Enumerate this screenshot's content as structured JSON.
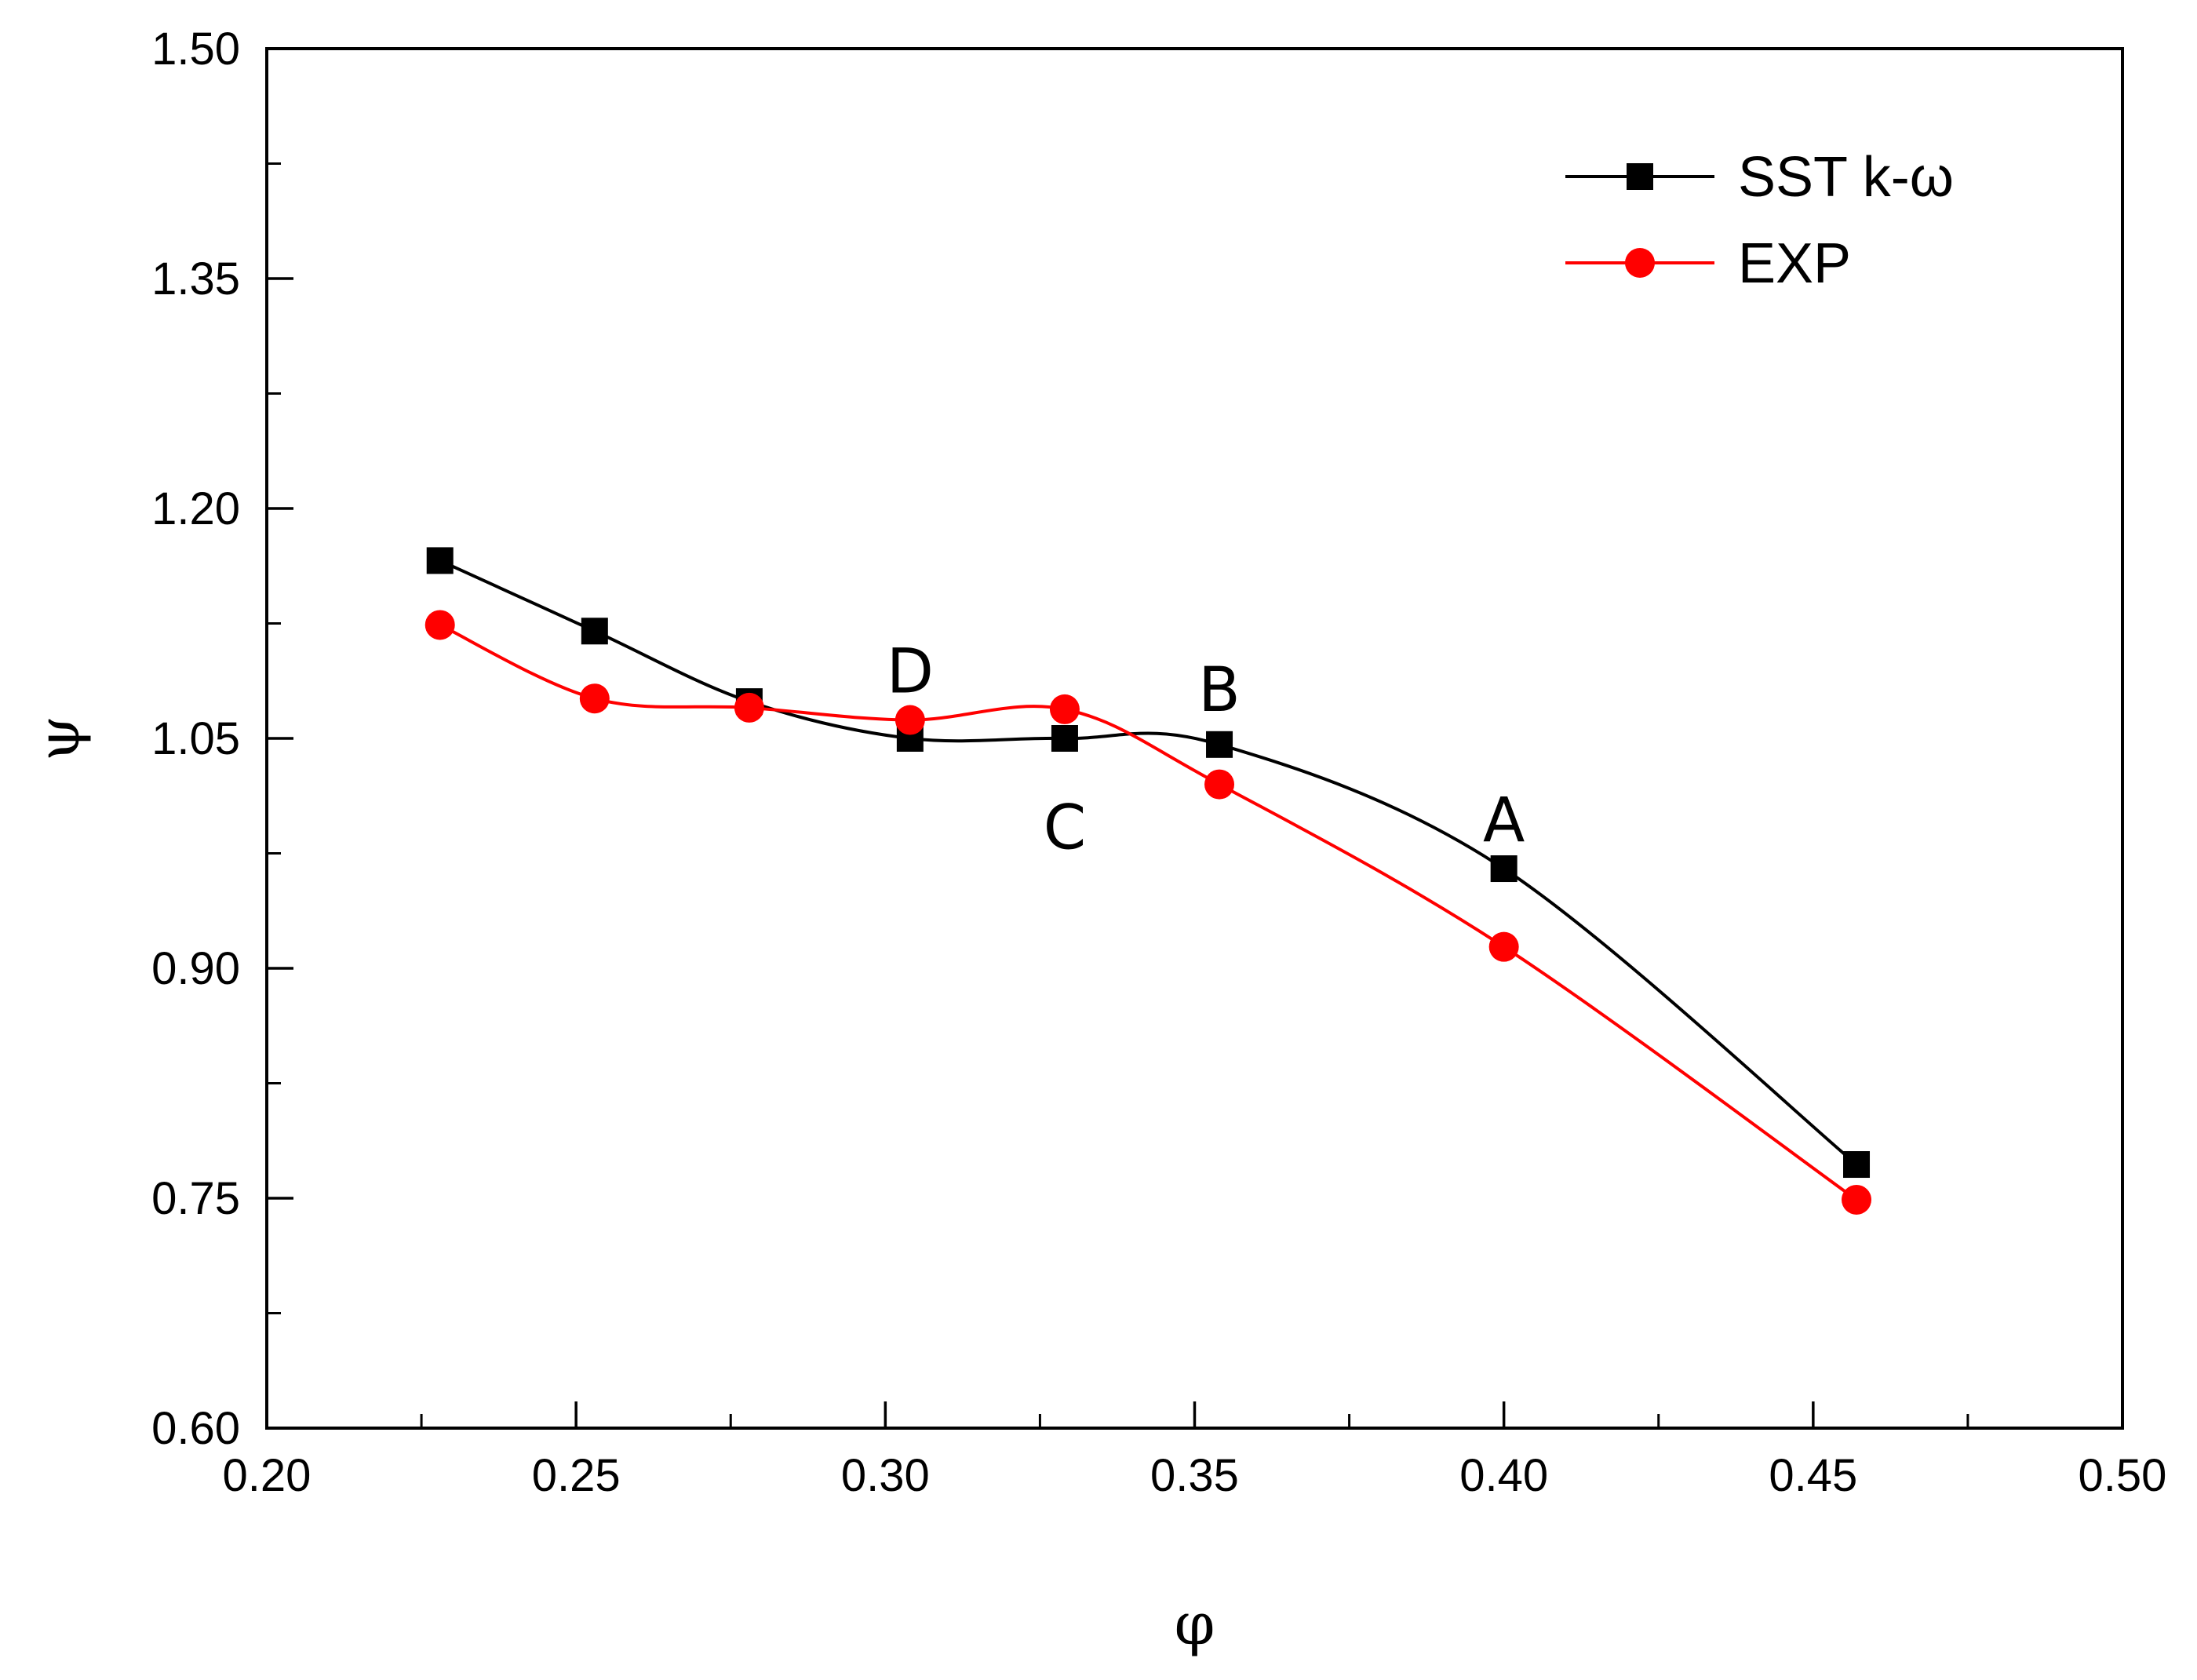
{
  "chart_data": {
    "type": "line",
    "title": "",
    "xlabel": "φ",
    "ylabel": "ψ",
    "xlim": [
      0.2,
      0.5
    ],
    "ylim": [
      0.6,
      1.5
    ],
    "x_ticks": [
      0.2,
      0.25,
      0.3,
      0.35,
      0.4,
      0.45,
      0.5
    ],
    "x_tick_labels": [
      "0.20",
      "0.25",
      "0.30",
      "0.35",
      "0.40",
      "0.45",
      "0.50"
    ],
    "x_minor_ticks": [
      0.225,
      0.275,
      0.325,
      0.375,
      0.425,
      0.475
    ],
    "y_ticks": [
      0.6,
      0.75,
      0.9,
      1.05,
      1.2,
      1.35,
      1.5
    ],
    "y_tick_labels": [
      "0.60",
      "0.75",
      "0.90",
      "1.05",
      "1.20",
      "1.35",
      "1.50"
    ],
    "y_minor_ticks": [
      0.675,
      0.825,
      0.975,
      1.125,
      1.275,
      1.425
    ],
    "grid": false,
    "legend_position": "top-right",
    "series": [
      {
        "name": "SST k-ω",
        "color": "#000000",
        "marker": "square",
        "x": [
          0.228,
          0.253,
          0.278,
          0.304,
          0.329,
          0.354,
          0.4,
          0.457
        ],
        "y": [
          1.166,
          1.12,
          1.074,
          1.05,
          1.05,
          1.046,
          0.965,
          0.772
        ]
      },
      {
        "name": "EXP",
        "color": "#ff0000",
        "marker": "circle",
        "x": [
          0.228,
          0.253,
          0.278,
          0.304,
          0.329,
          0.354,
          0.4,
          0.457
        ],
        "y": [
          1.124,
          1.076,
          1.07,
          1.062,
          1.069,
          1.02,
          0.914,
          0.749
        ]
      }
    ],
    "annotations": [
      {
        "text": "D",
        "x": 0.304,
        "y": 1.08
      },
      {
        "text": "C",
        "x": 0.329,
        "y": 0.978
      },
      {
        "text": "B",
        "x": 0.354,
        "y": 1.068
      },
      {
        "text": "A",
        "x": 0.4,
        "y": 0.983
      }
    ]
  }
}
